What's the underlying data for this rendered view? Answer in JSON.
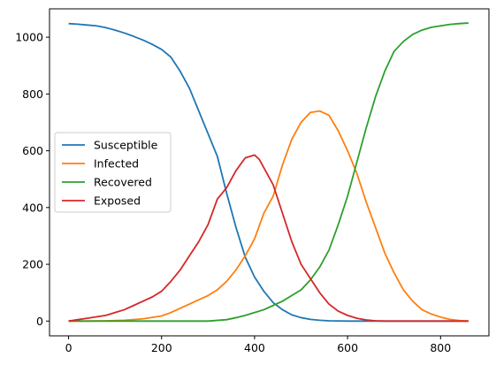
{
  "chart_data": {
    "type": "line",
    "title": "",
    "xlabel": "",
    "ylabel": "",
    "xlim": [
      -41,
      904
    ],
    "ylim": [
      -52,
      1100
    ],
    "xticks": [
      0,
      200,
      400,
      600,
      800
    ],
    "yticks": [
      0,
      200,
      400,
      600,
      800,
      1000
    ],
    "grid": false,
    "legend": {
      "placement": "center-left"
    },
    "series": [
      {
        "name": "Susceptible",
        "color": "#1f77b4",
        "x": [
          0,
          20,
          40,
          60,
          80,
          100,
          120,
          140,
          160,
          180,
          200,
          220,
          240,
          260,
          280,
          300,
          320,
          340,
          360,
          380,
          400,
          420,
          440,
          460,
          480,
          500,
          520,
          540,
          560,
          600,
          700,
          800,
          860
        ],
        "y": [
          1048,
          1046,
          1043,
          1040,
          1034,
          1025,
          1015,
          1003,
          990,
          975,
          957,
          930,
          880,
          820,
          740,
          660,
          580,
          450,
          330,
          225,
          155,
          105,
          65,
          40,
          22,
          12,
          6,
          3,
          1,
          0,
          0,
          0,
          0
        ]
      },
      {
        "name": "Infected",
        "color": "#ff7f0e",
        "x": [
          0,
          40,
          80,
          120,
          160,
          200,
          220,
          240,
          260,
          280,
          300,
          320,
          340,
          360,
          380,
          400,
          420,
          440,
          460,
          480,
          500,
          520,
          540,
          560,
          580,
          600,
          620,
          640,
          660,
          680,
          700,
          720,
          740,
          760,
          780,
          800,
          820,
          840,
          860
        ],
        "y": [
          0,
          0,
          1,
          3,
          8,
          18,
          30,
          45,
          60,
          75,
          90,
          110,
          140,
          180,
          230,
          290,
          380,
          440,
          550,
          640,
          700,
          735,
          740,
          725,
          670,
          600,
          520,
          420,
          330,
          240,
          170,
          110,
          70,
          40,
          25,
          14,
          6,
          2,
          0
        ]
      },
      {
        "name": "Recovered",
        "color": "#2ca02c",
        "x": [
          0,
          100,
          200,
          300,
          340,
          360,
          380,
          400,
          420,
          440,
          460,
          480,
          500,
          520,
          540,
          560,
          580,
          600,
          620,
          640,
          660,
          680,
          700,
          720,
          740,
          760,
          780,
          800,
          820,
          840,
          860
        ],
        "y": [
          0,
          0,
          0,
          0,
          5,
          12,
          20,
          30,
          40,
          55,
          70,
          90,
          110,
          145,
          190,
          250,
          340,
          440,
          560,
          680,
          790,
          880,
          950,
          985,
          1010,
          1025,
          1035,
          1040,
          1045,
          1048,
          1050
        ]
      },
      {
        "name": "Exposed",
        "color": "#d62728",
        "x": [
          0,
          20,
          40,
          60,
          80,
          100,
          120,
          140,
          160,
          180,
          200,
          220,
          240,
          260,
          280,
          300,
          320,
          340,
          360,
          380,
          390,
          400,
          410,
          420,
          440,
          460,
          480,
          500,
          520,
          540,
          560,
          580,
          600,
          620,
          640,
          660,
          680,
          700,
          860
        ],
        "y": [
          0,
          5,
          10,
          15,
          20,
          30,
          40,
          55,
          70,
          85,
          105,
          140,
          180,
          230,
          280,
          340,
          430,
          470,
          530,
          575,
          580,
          585,
          570,
          540,
          480,
          380,
          280,
          200,
          150,
          100,
          60,
          35,
          20,
          10,
          4,
          1,
          0,
          0,
          0
        ]
      }
    ]
  }
}
